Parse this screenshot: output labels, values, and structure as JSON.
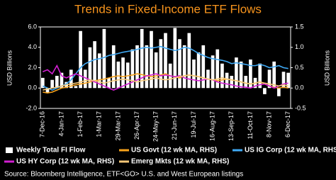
{
  "chart_data": {
    "type": "bar-line",
    "title": "Trends in Fixed-Income ETF Flows",
    "ylabel": "USD Billions",
    "y2label": "USD Billions",
    "footnote": "Source: Bloomberg Intelligence, ETF<GO> U.S. and West European listings",
    "categories": [
      "7-Dec-16",
      null,
      null,
      null,
      "4-Jan-17",
      null,
      null,
      null,
      "1-Feb-17",
      null,
      null,
      null,
      "1-Mar-17",
      null,
      null,
      null,
      "29-Mar-17",
      null,
      null,
      null,
      "26-Apr-17",
      null,
      null,
      null,
      "24-May-17",
      null,
      null,
      null,
      "21-Jun-17",
      null,
      null,
      null,
      "19-Jul-17",
      null,
      null,
      null,
      "16-Aug-17",
      null,
      null,
      null,
      "13-Sep-17",
      null,
      null,
      null,
      "11-Oct-17",
      null,
      null,
      null,
      "8-Nov-17",
      null,
      null,
      null,
      "6-Dec-17"
    ],
    "ylim": [
      -2,
      6
    ],
    "yticks": [
      {
        "value": -2,
        "label": "-2.0"
      },
      {
        "value": 0,
        "label": "0.0"
      },
      {
        "value": 2,
        "label": "2.0"
      },
      {
        "value": 4,
        "label": "4.0"
      },
      {
        "value": 6,
        "label": "6.0"
      }
    ],
    "y2lim": [
      -0.5,
      1.5
    ],
    "y2ticks": [
      -0.5,
      {
        "value": 0,
        "label": "0.0"
      },
      0.5,
      {
        "value": 1,
        "label": "1.0"
      },
      1.5
    ],
    "series": [
      {
        "name": "Weekly Total FI Flow",
        "color": "#ffffff",
        "kind": "bar",
        "values": [
          1.0,
          -0.5,
          0.8,
          1.2,
          1.5,
          0.6,
          1.8,
          0.2,
          5.6,
          1.8,
          4.0,
          4.6,
          3.4,
          5.8,
          1.0,
          4.2,
          2.6,
          3.0,
          2.5,
          3.8,
          4.2,
          5.8,
          4.2,
          5.6,
          3.5,
          4.8,
          5.4,
          2.4,
          5.9,
          4.8,
          4.2,
          5.4,
          2.8,
          3.5,
          4.2,
          1.8,
          3.2,
          3.8,
          2.4,
          1.5,
          1.2,
          3.0,
          2.6,
          1.2,
          2.8,
          1.0,
          2.4,
          -0.6,
          1.8,
          2.6,
          -0.8,
          1.6,
          1.5
        ]
      },
      {
        "name": "US Govt (12 wk MA, RHS)",
        "color": "#f7a21b",
        "kind": "line",
        "axis": "y2",
        "values": [
          -0.1,
          -0.12,
          -0.1,
          -0.05,
          0.0,
          0.02,
          0.05,
          0.08,
          0.1,
          0.12,
          0.15,
          0.18,
          0.2,
          0.22,
          0.25,
          0.28,
          0.3,
          0.28,
          0.3,
          0.32,
          0.35,
          0.33,
          0.3,
          0.28,
          0.3,
          0.32,
          0.35,
          0.3,
          0.28,
          0.25,
          0.3,
          0.32,
          0.3,
          0.28,
          0.25,
          0.22,
          0.2,
          0.18,
          0.2,
          0.22,
          0.2,
          0.18,
          0.15,
          0.12,
          0.1,
          0.12,
          0.15,
          0.1,
          0.05,
          0.02,
          0.0,
          0.02,
          0.0
        ]
      },
      {
        "name": "US IG Corp (12 wk MA, RHS)",
        "color": "#3fa9f5",
        "kind": "line",
        "axis": "y2",
        "values": [
          0.05,
          0.0,
          -0.05,
          0.0,
          0.05,
          0.1,
          0.2,
          0.35,
          0.5,
          0.6,
          0.65,
          0.7,
          0.72,
          0.75,
          0.8,
          0.82,
          0.85,
          0.88,
          0.9,
          0.92,
          0.95,
          0.98,
          1.0,
          0.98,
          1.0,
          1.02,
          0.98,
          0.95,
          0.92,
          0.95,
          1.0,
          0.98,
          0.92,
          0.85,
          0.8,
          0.75,
          0.72,
          0.7,
          0.68,
          0.65,
          0.6,
          0.62,
          0.6,
          0.58,
          0.55,
          0.55,
          0.58,
          0.55,
          0.5,
          0.52,
          0.55,
          0.5,
          0.48
        ]
      },
      {
        "name": "US HY Corp (12 wk MA, RHS)",
        "color": "#d21fd2",
        "kind": "line",
        "axis": "y2",
        "values": [
          0.4,
          0.45,
          0.35,
          0.55,
          0.3,
          0.25,
          0.3,
          0.35,
          0.3,
          0.25,
          0.2,
          0.15,
          0.1,
          0.05,
          0.0,
          -0.05,
          0.0,
          0.05,
          0.1,
          0.15,
          0.2,
          0.25,
          0.3,
          0.32,
          0.35,
          0.3,
          0.32,
          0.3,
          0.28,
          0.3,
          0.25,
          0.22,
          0.2,
          0.18,
          0.2,
          0.22,
          0.2,
          0.15,
          0.12,
          0.1,
          0.08,
          0.05,
          0.03,
          0.02,
          0.0,
          0.05,
          0.08,
          0.1,
          0.05,
          0.0,
          0.05,
          0.1,
          0.12
        ]
      },
      {
        "name": "Emerg Mkts (12 wk MA, RHS)",
        "color": "#f5c878",
        "kind": "line",
        "axis": "y2",
        "values": [
          -0.05,
          -0.02,
          0.0,
          0.02,
          0.05,
          0.08,
          0.1,
          0.12,
          0.15,
          0.18,
          0.2,
          0.18,
          0.15,
          0.12,
          0.15,
          0.18,
          0.2,
          0.22,
          0.2,
          0.18,
          0.15,
          0.18,
          0.2,
          0.22,
          0.25,
          0.22,
          0.2,
          0.22,
          0.25,
          0.28,
          0.3,
          0.32,
          0.3,
          0.28,
          0.25,
          0.22,
          0.2,
          0.22,
          0.25,
          0.22,
          0.2,
          0.18,
          0.15,
          0.12,
          0.1,
          0.12,
          0.15,
          0.12,
          0.1,
          0.08,
          0.05,
          0.08,
          0.05
        ]
      }
    ]
  }
}
